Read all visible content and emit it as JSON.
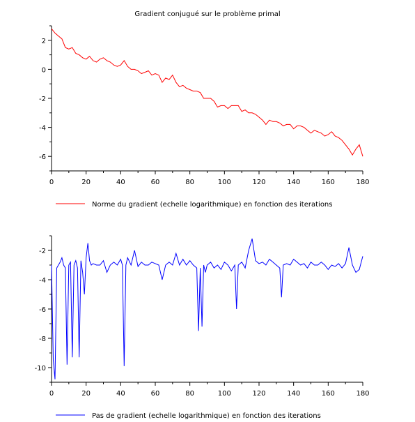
{
  "figure_title": "Gradient conjugué sur le problème primal",
  "chart_data": [
    {
      "type": "line",
      "xlim": [
        0,
        180
      ],
      "ylim": [
        -7,
        3
      ],
      "xticks": [
        0,
        20,
        40,
        60,
        80,
        100,
        120,
        140,
        160,
        180
      ],
      "yticks": [
        2,
        0,
        -2,
        -4,
        -6
      ],
      "xlabel": "",
      "ylabel": "",
      "grid": false,
      "legend_position": "bottom-left",
      "series": [
        {
          "name": "Norme du gradient (echelle logarithmique) en fonction des iterations",
          "color": "#ff0000",
          "x": [
            0,
            2,
            4,
            6,
            8,
            10,
            12,
            14,
            16,
            18,
            20,
            22,
            24,
            26,
            28,
            30,
            32,
            34,
            36,
            38,
            40,
            42,
            44,
            46,
            48,
            50,
            52,
            54,
            56,
            58,
            60,
            62,
            64,
            66,
            68,
            70,
            72,
            74,
            76,
            78,
            80,
            82,
            84,
            86,
            88,
            90,
            92,
            94,
            96,
            98,
            100,
            102,
            104,
            106,
            108,
            110,
            112,
            114,
            116,
            118,
            120,
            122,
            124,
            126,
            128,
            130,
            132,
            134,
            136,
            138,
            140,
            142,
            144,
            146,
            148,
            150,
            152,
            154,
            156,
            158,
            160,
            162,
            164,
            166,
            168,
            170,
            172,
            174,
            176,
            178,
            180
          ],
          "y": [
            2.8,
            2.5,
            2.3,
            2.1,
            1.5,
            1.4,
            1.5,
            1.1,
            1.0,
            0.8,
            0.7,
            0.9,
            0.6,
            0.5,
            0.7,
            0.8,
            0.6,
            0.5,
            0.3,
            0.2,
            0.3,
            0.6,
            0.2,
            0.0,
            0.0,
            -0.1,
            -0.3,
            -0.2,
            -0.1,
            -0.4,
            -0.3,
            -0.4,
            -0.9,
            -0.6,
            -0.7,
            -0.4,
            -0.9,
            -1.2,
            -1.1,
            -1.3,
            -1.4,
            -1.5,
            -1.5,
            -1.6,
            -2.0,
            -2.0,
            -2.0,
            -2.2,
            -2.6,
            -2.5,
            -2.5,
            -2.7,
            -2.5,
            -2.5,
            -2.5,
            -2.9,
            -2.8,
            -3.0,
            -3.0,
            -3.1,
            -3.3,
            -3.5,
            -3.8,
            -3.5,
            -3.6,
            -3.6,
            -3.7,
            -3.9,
            -3.8,
            -3.8,
            -4.1,
            -3.9,
            -3.9,
            -4.0,
            -4.2,
            -4.4,
            -4.2,
            -4.3,
            -4.4,
            -4.6,
            -4.5,
            -4.3,
            -4.6,
            -4.7,
            -4.9,
            -5.2,
            -5.5,
            -5.9,
            -5.5,
            -5.2,
            -6.0
          ]
        }
      ]
    },
    {
      "type": "line",
      "xlim": [
        0,
        180
      ],
      "ylim": [
        -11,
        -1
      ],
      "xticks": [
        0,
        20,
        40,
        60,
        80,
        100,
        120,
        140,
        160,
        180
      ],
      "yticks": [
        -2,
        -4,
        -6,
        -8,
        -10
      ],
      "xlabel": "",
      "ylabel": "",
      "grid": false,
      "legend_position": "bottom-left",
      "series": [
        {
          "name": "Pas de gradient (echelle logarithmique) en fonction des iterations",
          "color": "#0000ff",
          "x": [
            0,
            1,
            2,
            3,
            4,
            5,
            6,
            7,
            8,
            9,
            10,
            11,
            12,
            13,
            14,
            15,
            16,
            17,
            18,
            19,
            20,
            21,
            22,
            23,
            24,
            26,
            28,
            30,
            32,
            34,
            36,
            38,
            40,
            41,
            42,
            43,
            44,
            46,
            48,
            50,
            52,
            54,
            56,
            58,
            60,
            62,
            64,
            66,
            68,
            70,
            72,
            74,
            76,
            78,
            80,
            82,
            84,
            85,
            86,
            87,
            88,
            89,
            90,
            92,
            94,
            96,
            98,
            100,
            102,
            104,
            106,
            107,
            108,
            110,
            112,
            114,
            116,
            118,
            120,
            122,
            124,
            126,
            128,
            130,
            132,
            133,
            134,
            136,
            138,
            140,
            142,
            144,
            146,
            148,
            150,
            152,
            154,
            156,
            158,
            160,
            162,
            164,
            166,
            168,
            170,
            172,
            174,
            176,
            178,
            180
          ],
          "y": [
            -3.0,
            -9.5,
            -10.8,
            -3.2,
            -3.0,
            -2.8,
            -2.5,
            -3.0,
            -3.2,
            -9.8,
            -3.0,
            -2.8,
            -9.3,
            -3.0,
            -2.7,
            -3.2,
            -9.3,
            -2.7,
            -3.5,
            -5.0,
            -2.5,
            -1.5,
            -2.7,
            -3.0,
            -2.9,
            -3.0,
            -3.0,
            -2.7,
            -3.5,
            -3.0,
            -2.8,
            -3.0,
            -2.6,
            -3.0,
            -9.9,
            -3.0,
            -2.5,
            -3.0,
            -2.0,
            -3.1,
            -2.8,
            -3.0,
            -3.0,
            -2.8,
            -2.9,
            -3.0,
            -4.0,
            -3.0,
            -2.8,
            -3.0,
            -2.2,
            -3.0,
            -2.6,
            -3.0,
            -2.7,
            -3.0,
            -3.2,
            -7.5,
            -3.2,
            -7.2,
            -3.0,
            -3.5,
            -3.0,
            -2.8,
            -3.2,
            -3.0,
            -3.3,
            -2.8,
            -3.0,
            -3.4,
            -3.0,
            -6.0,
            -3.0,
            -2.8,
            -3.2,
            -2.0,
            -1.2,
            -2.7,
            -2.9,
            -2.8,
            -3.0,
            -2.6,
            -2.8,
            -3.0,
            -3.2,
            -5.2,
            -3.0,
            -2.9,
            -3.0,
            -2.6,
            -2.8,
            -3.0,
            -2.9,
            -3.2,
            -2.8,
            -3.0,
            -3.0,
            -2.8,
            -3.0,
            -3.3,
            -3.0,
            -3.1,
            -2.9,
            -3.2,
            -2.9,
            -1.8,
            -3.0,
            -3.5,
            -3.3,
            -2.4
          ]
        }
      ]
    }
  ]
}
